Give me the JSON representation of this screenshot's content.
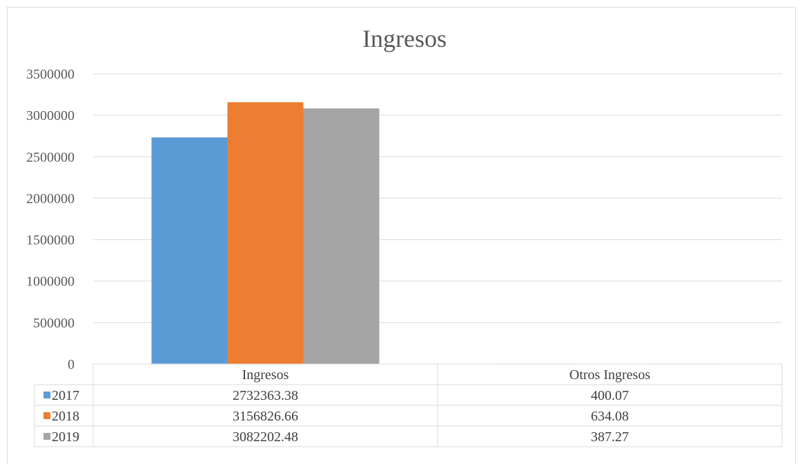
{
  "chart_data": {
    "type": "bar",
    "title": "Ingresos",
    "categories": [
      "Ingresos",
      "Otros Ingresos"
    ],
    "series": [
      {
        "name": "2017",
        "values": [
          2732363.38,
          400.07
        ],
        "labels": [
          "2732363.38",
          "400.07"
        ],
        "color": "#5b9bd5"
      },
      {
        "name": "2018",
        "values": [
          3156826.66,
          634.08
        ],
        "labels": [
          "3156826.66",
          "634.08"
        ],
        "color": "#ed7d31"
      },
      {
        "name": "2019",
        "values": [
          3082202.48,
          387.27
        ],
        "labels": [
          "3082202.48",
          "387.27"
        ],
        "color": "#a5a5a5"
      }
    ],
    "yticks": [
      "0",
      "500000",
      "1000000",
      "1500000",
      "2000000",
      "2500000",
      "3000000",
      "3500000"
    ],
    "ylim": [
      0,
      3500000
    ],
    "grid": true,
    "legend": "data table"
  }
}
